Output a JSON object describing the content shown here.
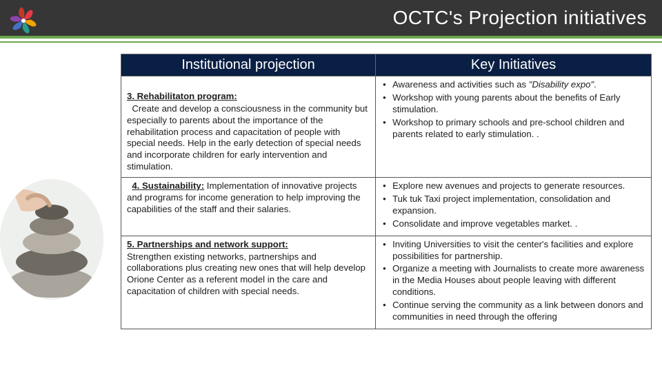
{
  "colors": {
    "header_bg": "#363636",
    "accent": "#6aa84f",
    "table_header_bg": "#0a1f44",
    "border": "#555555",
    "text": "#202020",
    "logo_petals": [
      "#e63946",
      "#f4a300",
      "#2a9d8f",
      "#4472c4",
      "#8e44ad",
      "#c0392b"
    ]
  },
  "page_title": "OCTC's Projection initiatives",
  "table": {
    "header_left": "Institutional projection",
    "header_right": "Key Initiatives",
    "rows": [
      {
        "left_title": "3. Rehabilitaton program:",
        "left_indent": true,
        "left_body": "Create and develop a consciousness in the community but especially to parents about the importance of the rehabilitation process and capacitation of people with special needs. Help in the early detection of special needs and incorporate children for early intervention and stimulation.",
        "right_items": [
          "Awareness and activities such as <span class=\"italic\">\"Disability expo\"</span>.",
          "Workshop with young parents about the benefits of Early stimulation.",
          "Workshop to primary schools and pre-school children and parents related to early stimulation. ."
        ]
      },
      {
        "left_title": "4. Sustainability:",
        "left_inline": true,
        "left_body": "Implementation of innovative projects and programs for income generation to help improving the capabilities of the staff and their salaries.",
        "right_items": [
          "Explore new avenues and projects to generate resources.",
          "Tuk tuk Taxi project implementation, consolidation and expansion.",
          "Consolidate and improve vegetables market. ."
        ]
      },
      {
        "left_title": "5. Partnerships and network support:",
        "left_body": "Strengthen existing networks, partnerships and collaborations plus creating new ones that will help develop Orione Center as a referent model in the care and capacitation of children with special needs.",
        "right_items": [
          "Inviting Universities to visit the center's facilities and explore possibilities for partnership.",
          "Organize a meeting with Journalists to create more awareness in the Media Houses about people leaving with different conditions.",
          "Continue serving the community as a link between donors and communities in need through the offering"
        ]
      }
    ]
  }
}
